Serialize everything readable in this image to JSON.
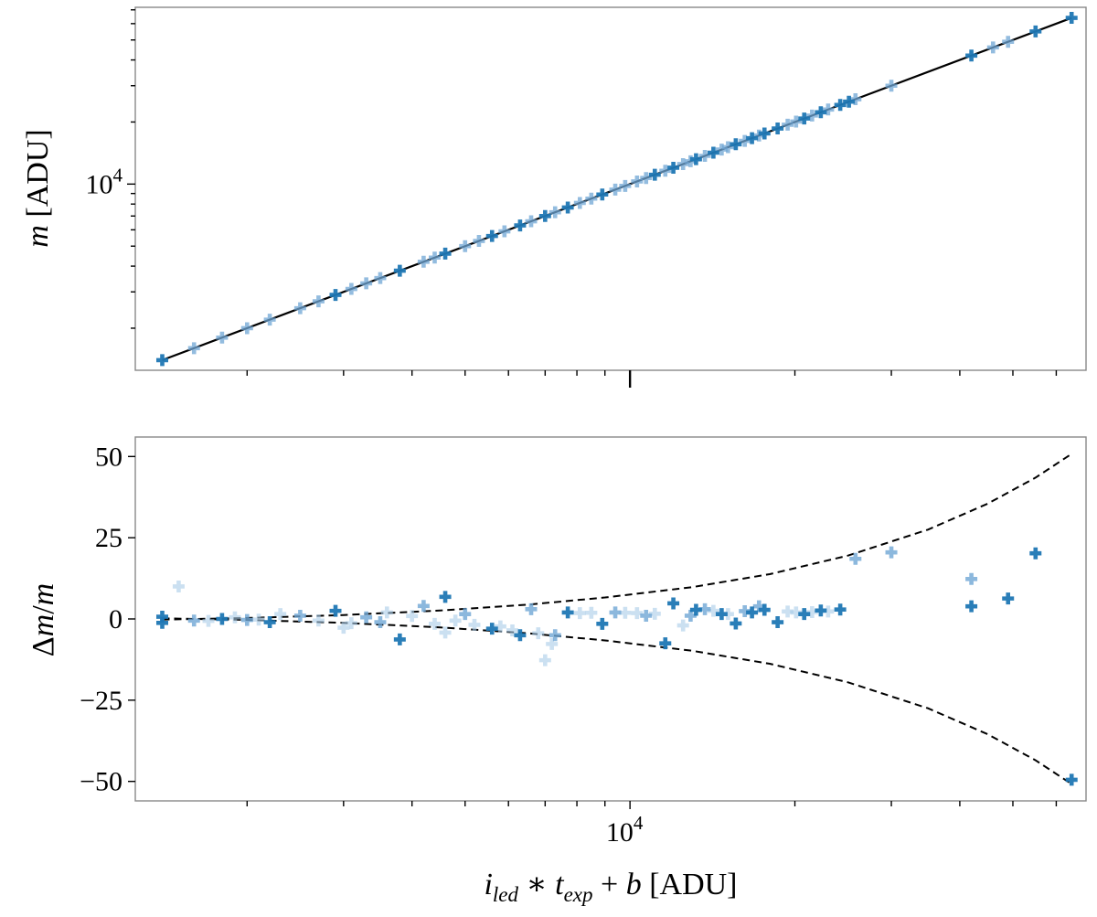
{
  "chart_data": [
    {
      "panel": "top",
      "type": "scatter",
      "xscale": "log",
      "yscale": "log",
      "xlim": [
        1250,
        68000
      ],
      "ylim": [
        1250,
        72000
      ],
      "ylabel": "m [ADU]",
      "ytick_labels": [
        {
          "value": 10000,
          "label": "10^4"
        }
      ],
      "marker": "plus",
      "points_dark": [
        [
          1400,
          1400
        ],
        [
          2900,
          2900
        ],
        [
          3800,
          3800
        ],
        [
          4600,
          4600
        ],
        [
          5600,
          5600
        ],
        [
          6300,
          6300
        ],
        [
          7000,
          7000
        ],
        [
          7700,
          7700
        ],
        [
          8900,
          8900
        ],
        [
          11100,
          11100
        ],
        [
          12000,
          12000
        ],
        [
          13200,
          13200
        ],
        [
          14200,
          14200
        ],
        [
          15600,
          15600
        ],
        [
          16700,
          16700
        ],
        [
          17600,
          17600
        ],
        [
          18600,
          18600
        ],
        [
          20800,
          20800
        ],
        [
          22300,
          22300
        ],
        [
          24200,
          24200
        ],
        [
          25100,
          25100
        ],
        [
          42000,
          42000
        ],
        [
          55000,
          55000
        ],
        [
          64000,
          64000
        ]
      ],
      "points_light": [
        [
          1600,
          1600
        ],
        [
          1800,
          1800
        ],
        [
          2000,
          2000
        ],
        [
          2200,
          2200
        ],
        [
          2500,
          2500
        ],
        [
          2700,
          2700
        ],
        [
          3100,
          3100
        ],
        [
          3300,
          3300
        ],
        [
          3500,
          3500
        ],
        [
          4200,
          4200
        ],
        [
          4400,
          4400
        ],
        [
          5000,
          5000
        ],
        [
          5300,
          5300
        ],
        [
          5900,
          5900
        ],
        [
          6600,
          6600
        ],
        [
          7300,
          7300
        ],
        [
          8100,
          8100
        ],
        [
          8500,
          8500
        ],
        [
          9400,
          9400
        ],
        [
          9800,
          9800
        ],
        [
          10300,
          10300
        ],
        [
          10700,
          10700
        ],
        [
          11600,
          11600
        ],
        [
          12500,
          12500
        ],
        [
          12900,
          12900
        ],
        [
          13700,
          13700
        ],
        [
          14700,
          14700
        ],
        [
          15100,
          15100
        ],
        [
          16200,
          16200
        ],
        [
          17200,
          17200
        ],
        [
          19400,
          19400
        ],
        [
          20100,
          20100
        ],
        [
          21500,
          21500
        ],
        [
          23000,
          23000
        ],
        [
          25800,
          25800
        ],
        [
          30000,
          30000
        ],
        [
          46000,
          46000
        ],
        [
          49000,
          49000
        ]
      ],
      "fit_line": {
        "x": [
          1400,
          64000
        ],
        "y": [
          1400,
          64000
        ]
      }
    },
    {
      "panel": "bottom",
      "type": "scatter",
      "xscale": "log",
      "yscale": "linear",
      "xlim": [
        1250,
        68000
      ],
      "ylim": [
        -56,
        56
      ],
      "xlabel": "i_led * t_exp + b [ADU]",
      "ylabel": "Δm/m",
      "xtick_labels": [
        {
          "value": 10000,
          "label": "10^4"
        }
      ],
      "ytick_labels": [
        {
          "value": 50,
          "label": "50"
        },
        {
          "value": 25,
          "label": "25"
        },
        {
          "value": 0,
          "label": "0"
        },
        {
          "value": -25,
          "label": "−25"
        },
        {
          "value": -50,
          "label": "−50"
        }
      ],
      "marker": "plus",
      "points_dark": [
        [
          1400,
          0.7
        ],
        [
          1400,
          -1.2
        ],
        [
          1800,
          0
        ],
        [
          2200,
          -1
        ],
        [
          2900,
          2.5
        ],
        [
          3800,
          -6.3
        ],
        [
          4600,
          6.8
        ],
        [
          5600,
          -3
        ],
        [
          6300,
          -5
        ],
        [
          7700,
          2
        ],
        [
          8900,
          -1.5
        ],
        [
          11600,
          -7.5
        ],
        [
          12000,
          4.8
        ],
        [
          13200,
          2.8
        ],
        [
          14700,
          1.5
        ],
        [
          15600,
          -1.4
        ],
        [
          16700,
          2
        ],
        [
          17600,
          2.8
        ],
        [
          18600,
          -1
        ],
        [
          20800,
          1.5
        ],
        [
          22300,
          2.6
        ],
        [
          24200,
          2.9
        ],
        [
          42000,
          3.9
        ],
        [
          49000,
          6.3
        ],
        [
          55000,
          20.2
        ],
        [
          64000,
          -49.5
        ]
      ],
      "points_mid": [
        [
          1600,
          -0.5
        ],
        [
          2000,
          -0.3
        ],
        [
          2500,
          1
        ],
        [
          3300,
          0.5
        ],
        [
          3500,
          -1
        ],
        [
          4200,
          4
        ],
        [
          5000,
          1.5
        ],
        [
          6600,
          3
        ],
        [
          7300,
          -5
        ],
        [
          9400,
          2
        ],
        [
          10700,
          1
        ],
        [
          12900,
          1
        ],
        [
          13700,
          3
        ],
        [
          16200,
          2.4
        ],
        [
          17200,
          3.9
        ],
        [
          25800,
          18.5
        ],
        [
          30000,
          20.5
        ],
        [
          42000,
          12.3
        ]
      ],
      "points_light": [
        [
          1500,
          10
        ],
        [
          1700,
          -0.6
        ],
        [
          1900,
          0.5
        ],
        [
          2100,
          -0.2
        ],
        [
          2300,
          1.5
        ],
        [
          2700,
          -0.5
        ],
        [
          3100,
          -1.3
        ],
        [
          3600,
          2
        ],
        [
          4000,
          0.9
        ],
        [
          4400,
          -1.5
        ],
        [
          4800,
          -0.5
        ],
        [
          5200,
          -1.8
        ],
        [
          5800,
          -2.3
        ],
        [
          6100,
          -3.5
        ],
        [
          6800,
          -4.4
        ],
        [
          7000,
          -12.7
        ],
        [
          7200,
          -7.7
        ],
        [
          8100,
          1.8
        ],
        [
          8500,
          1.9
        ],
        [
          9800,
          1.9
        ],
        [
          10300,
          1.8
        ],
        [
          11100,
          1.6
        ],
        [
          12500,
          -2
        ],
        [
          14200,
          2.5
        ],
        [
          15100,
          1.5
        ],
        [
          19400,
          2.3
        ],
        [
          20100,
          2
        ],
        [
          21500,
          2.1
        ],
        [
          23000,
          2.3
        ],
        [
          4600,
          -4.2
        ],
        [
          3000,
          -2.7
        ]
      ],
      "envelope": {
        "style": "dashed",
        "description": "symmetric ±σ curve",
        "x": [
          1400,
          2000,
          3000,
          4500,
          6500,
          9000,
          13000,
          18000,
          25000,
          35000,
          45000,
          55000,
          64000
        ],
        "y_upper": [
          -0.2,
          0.3,
          1.2,
          2.6,
          4.4,
          6.6,
          9.8,
          13.8,
          19.5,
          27.5,
          35.5,
          43.5,
          50.8
        ]
      }
    }
  ]
}
